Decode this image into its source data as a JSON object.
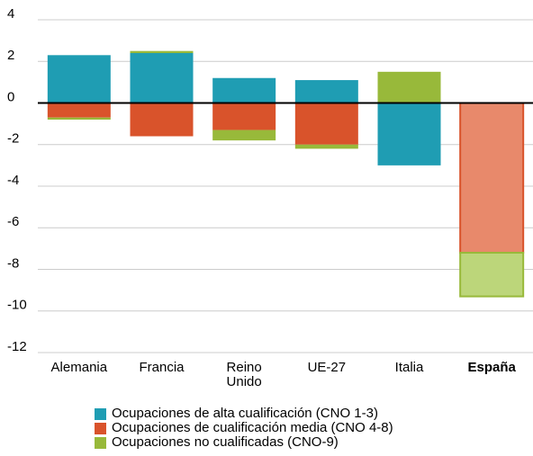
{
  "chart_data": {
    "type": "bar",
    "stacked": true,
    "categories": [
      "Alemania",
      "Francia",
      "Reino Unido",
      "UE-27",
      "Italia",
      "España"
    ],
    "category_font_weight": [
      "normal",
      "normal",
      "normal",
      "normal",
      "normal",
      "bold"
    ],
    "series": [
      {
        "name": "Ocupaciones de alta cualificación (CNO 1-3)",
        "color": "#1f9db3",
        "colors": [
          "#1f9db3",
          "#1f9db3",
          "#1f9db3",
          "#1f9db3",
          "#1f9db3",
          "#7fcbd8"
        ],
        "values": [
          2.3,
          2.4,
          1.2,
          1.1,
          -3.0,
          0
        ]
      },
      {
        "name": "Ocupaciones de cualificación media (CNO 4-8)",
        "color": "#d9532b",
        "colors": [
          "#d9532b",
          "#d9532b",
          "#d9532b",
          "#d9532b",
          "#d9532b",
          "#e8896b"
        ],
        "values": [
          -0.7,
          -1.6,
          -1.3,
          -2.0,
          0,
          -7.2
        ]
      },
      {
        "name": "Ocupaciones no cualificadas (CNO-9)",
        "color": "#98b93a",
        "colors": [
          "#98b93a",
          "#98b93a",
          "#98b93a",
          "#98b93a",
          "#98b93a",
          "#bcd67a"
        ],
        "values": [
          -0.1,
          0.1,
          -0.5,
          -0.2,
          1.5,
          -2.1
        ]
      }
    ],
    "ylim": [
      -12,
      4
    ],
    "yticks": [
      -12,
      -10,
      -8,
      -6,
      -4,
      -2,
      0,
      2,
      4
    ],
    "grid": true
  }
}
